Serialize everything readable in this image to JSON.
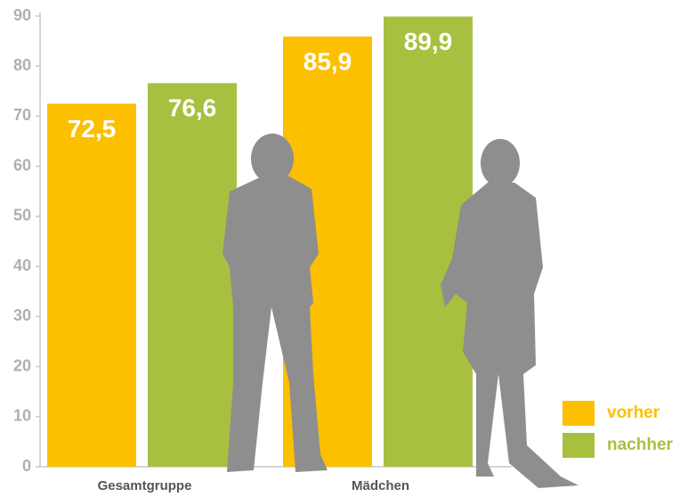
{
  "chart_data": {
    "type": "bar",
    "categories": [
      "Gesamtgruppe",
      "Mädchen"
    ],
    "series": [
      {
        "name": "vorher",
        "color": "#fcc000",
        "values": [
          72.5,
          85.9
        ],
        "value_labels": [
          "72,5",
          "85,9"
        ]
      },
      {
        "name": "nachher",
        "color": "#a8c040",
        "values": [
          76.6,
          89.9
        ],
        "value_labels": [
          "76,6",
          "89,9"
        ]
      }
    ],
    "ylim": [
      0,
      90
    ],
    "yticks": [
      0,
      10,
      20,
      30,
      40,
      50,
      60,
      70,
      80,
      90
    ],
    "grid": false,
    "legend": "bottom-right"
  }
}
